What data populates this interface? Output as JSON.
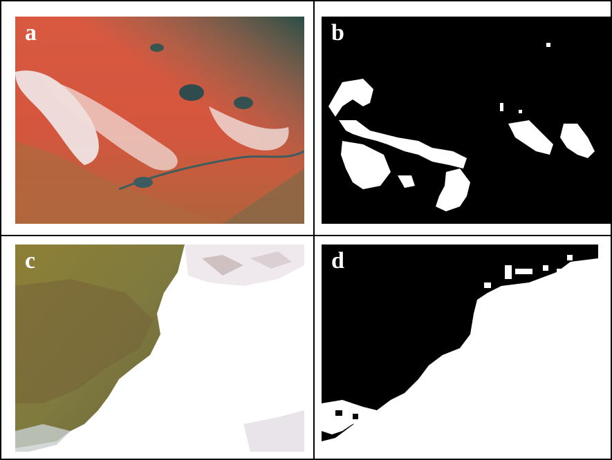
{
  "panels": [
    {
      "label": "a"
    },
    {
      "label": "b"
    },
    {
      "label": "c"
    },
    {
      "label": "d"
    }
  ],
  "colors": {
    "vegetation_red": "#d9553f",
    "soil_brown": "#a8623c",
    "cloud_white": "#f2eeee",
    "water_dark": "#2f4a4a",
    "olive": "#8a7d3a",
    "snow_white": "#ffffff",
    "mask_black": "#000000",
    "mask_white": "#ffffff"
  }
}
